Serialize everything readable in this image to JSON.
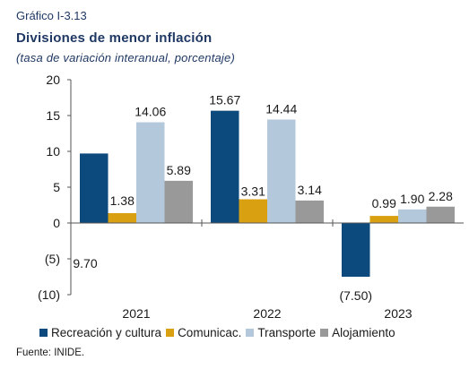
{
  "header": {
    "label": "Gráfico I-3.13",
    "title": "Divisiones de menor inflación",
    "subtitle": "(tasa de variación interanual, porcentaje)"
  },
  "source": "Fuente: INIDE.",
  "colors": {
    "Recreación y cultura": "#0c4a7d",
    "Comunicac.": "#d9a012",
    "Transporte": "#b4c8db",
    "Alojamiento": "#999999",
    "axis": "#555555"
  },
  "chart_data": {
    "type": "bar",
    "categories": [
      "2021",
      "2022",
      "2023"
    ],
    "series": [
      {
        "name": "Recreación y cultura",
        "values": [
          9.7,
          15.67,
          -7.5
        ],
        "labels": [
          "9.70",
          "15.67",
          "(7.50)"
        ]
      },
      {
        "name": "Comunicac.",
        "values": [
          1.38,
          3.31,
          0.99
        ],
        "labels": [
          "1.38",
          "3.31",
          "0.99"
        ]
      },
      {
        "name": "Transporte",
        "values": [
          14.06,
          14.44,
          1.9
        ],
        "labels": [
          "14.06",
          "14.44",
          "1.90"
        ]
      },
      {
        "name": "Alojamiento",
        "values": [
          5.89,
          3.14,
          2.28
        ],
        "labels": [
          "5.89",
          "3.14",
          "2.28"
        ]
      }
    ],
    "ylim": [
      -10,
      20
    ],
    "yticks": [
      20,
      15,
      10,
      5,
      0,
      -5,
      -10
    ],
    "ytick_labels": [
      "20",
      "15",
      "10",
      "5",
      "0",
      "(5)",
      "(10)"
    ],
    "legend_position": "bottom",
    "grid": false
  }
}
